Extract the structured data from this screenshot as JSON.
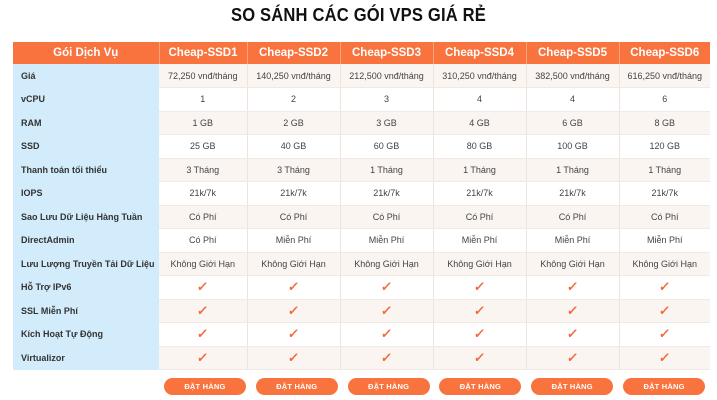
{
  "title": "SO SÁNH CÁC GÓI VPS GIÁ RẺ",
  "table": {
    "corner_header": "Gói Dịch Vụ",
    "plans": [
      "Cheap-SSD1",
      "Cheap-SSD2",
      "Cheap-SSD3",
      "Cheap-SSD4",
      "Cheap-SSD5",
      "Cheap-SSD6"
    ],
    "rows": [
      {
        "label": "Giá",
        "values": [
          "72,250 vnđ/tháng",
          "140,250 vnđ/tháng",
          "212,500 vnđ/tháng",
          "310,250 vnđ/tháng",
          "382,500 vnđ/tháng",
          "616,250 vnđ/tháng"
        ]
      },
      {
        "label": "vCPU",
        "values": [
          "1",
          "2",
          "3",
          "4",
          "4",
          "6"
        ]
      },
      {
        "label": "RAM",
        "values": [
          "1 GB",
          "2 GB",
          "3 GB",
          "4 GB",
          "6 GB",
          "8 GB"
        ]
      },
      {
        "label": "SSD",
        "values": [
          "25 GB",
          "40 GB",
          "60 GB",
          "80 GB",
          "100 GB",
          "120 GB"
        ]
      },
      {
        "label": "Thanh toán tối thiểu",
        "values": [
          "3 Tháng",
          "3 Tháng",
          "1 Tháng",
          "1 Tháng",
          "1 Tháng",
          "1 Tháng"
        ]
      },
      {
        "label": "IOPS",
        "values": [
          "21k/7k",
          "21k/7k",
          "21k/7k",
          "21k/7k",
          "21k/7k",
          "21k/7k"
        ]
      },
      {
        "label": "Sao Lưu Dữ Liệu Hàng Tuần",
        "values": [
          "Có Phí",
          "Có Phí",
          "Có Phí",
          "Có Phí",
          "Có Phí",
          "Có Phí"
        ]
      },
      {
        "label": "DirectAdmin",
        "values": [
          "Có Phí",
          "Miễn Phí",
          "Miễn Phí",
          "Miễn Phí",
          "Miễn Phí",
          "Miễn Phí"
        ]
      },
      {
        "label": "Lưu Lượng Truyền Tải Dữ Liệu",
        "values": [
          "Không Giới Hạn",
          "Không Giới Hạn",
          "Không Giới Hạn",
          "Không Giới Hạn",
          "Không Giới Hạn",
          "Không Giới Hạn"
        ]
      },
      {
        "label": "Hỗ Trợ IPv6",
        "values": [
          "✓",
          "✓",
          "✓",
          "✓",
          "✓",
          "✓"
        ],
        "icon": "check-icon"
      },
      {
        "label": "SSL Miễn Phí",
        "values": [
          "✓",
          "✓",
          "✓",
          "✓",
          "✓",
          "✓"
        ],
        "icon": "check-icon"
      },
      {
        "label": "Kích Hoạt Tự Động",
        "values": [
          "✓",
          "✓",
          "✓",
          "✓",
          "✓",
          "✓"
        ],
        "icon": "check-icon"
      },
      {
        "label": "Virtualizor",
        "values": [
          "✓",
          "✓",
          "✓",
          "✓",
          "✓",
          "✓"
        ],
        "icon": "check-icon"
      }
    ]
  },
  "order_button_label": "ĐẶT HÀNG",
  "colors": {
    "accent": "#f9733f",
    "label_column_bg": "#d3ecfb",
    "check": "#f06b3a"
  }
}
